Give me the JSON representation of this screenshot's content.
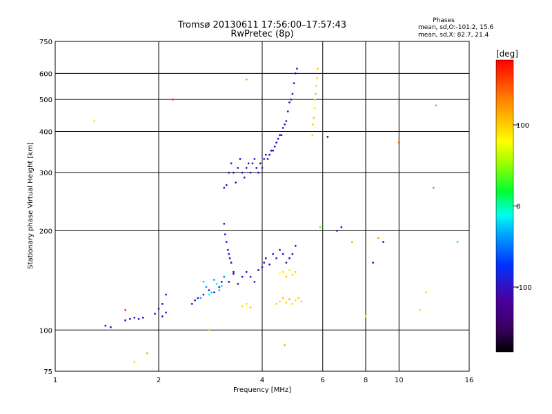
{
  "chart_data": {
    "type": "scatter",
    "title": "Tromsø 20130611 17:56:00–17:57:43",
    "subtitle": "RwPretec (8p)",
    "xlabel": "Frequency [MHz]",
    "ylabel": "Stationary phase Virtual Height [km]",
    "x_scale": "log",
    "y_scale": "log",
    "xlim": [
      1,
      16
    ],
    "ylim": [
      75,
      750
    ],
    "x_ticks": [
      1,
      2,
      4,
      6,
      8,
      10,
      16
    ],
    "x_tick_labels": [
      "1",
      "2",
      "4",
      "6",
      "8",
      "10",
      "16"
    ],
    "y_ticks": [
      75,
      100,
      200,
      300,
      400,
      500,
      600,
      750
    ],
    "y_tick_labels": [
      "75",
      "100",
      "200",
      "300",
      "400",
      "500",
      "600",
      "750"
    ],
    "grid": true,
    "info": {
      "heading": "Phases",
      "line1": "mean, sd,O:-101.2, 15.6",
      "line2": "mean, sd,X: 82.7, 21.4"
    },
    "colorbar": {
      "label": "[deg]",
      "range": [
        -180,
        180
      ],
      "ticks": [
        100,
        0,
        -100
      ],
      "tick_labels": [
        "100",
        "0",
        "-100"
      ]
    },
    "series": [
      {
        "x": [
          3.1,
          3.15,
          3.2,
          3.25,
          3.3,
          3.35,
          3.4,
          3.45,
          3.5,
          3.55,
          3.6,
          3.65,
          3.7,
          3.75,
          3.8,
          3.85,
          3.9,
          3.95,
          4.0,
          4.05,
          4.1,
          4.15,
          4.2,
          4.25,
          4.3,
          4.35,
          4.4,
          4.45,
          4.5,
          4.55,
          4.6,
          4.65,
          4.7,
          4.75,
          4.8,
          4.85,
          4.9,
          4.95,
          5.0,
          5.05
        ],
        "y": [
          270,
          275,
          300,
          320,
          300,
          280,
          310,
          330,
          300,
          290,
          310,
          320,
          300,
          320,
          330,
          310,
          300,
          320,
          310,
          330,
          340,
          330,
          340,
          350,
          350,
          360,
          370,
          380,
          390,
          390,
          410,
          420,
          430,
          460,
          490,
          500,
          520,
          560,
          600,
          620
        ],
        "phase": [
          -100,
          -110,
          -105,
          -95,
          -100,
          -110,
          -100,
          -105,
          -95,
          -100,
          -110,
          -100,
          -105,
          -100,
          -95,
          -110,
          -100,
          -105,
          -100,
          -95,
          -100,
          -110,
          -100,
          -105,
          -100,
          -95,
          -100,
          -105,
          -100,
          -110,
          -100,
          -95,
          -105,
          -100,
          -100,
          -110,
          -100,
          -95,
          -105,
          -100
        ]
      },
      {
        "x": [
          3.1,
          3.12,
          3.15,
          3.18,
          3.2,
          3.22,
          3.25,
          3.3
        ],
        "y": [
          210,
          195,
          185,
          175,
          170,
          165,
          160,
          150
        ],
        "phase": [
          -110,
          -105,
          -100,
          -110,
          -105,
          -100,
          -110,
          -105
        ]
      },
      {
        "x": [
          1.4,
          1.45,
          1.6,
          1.65,
          1.7,
          1.75,
          1.8,
          1.95,
          2.0,
          2.05,
          2.1,
          2.05,
          2.1,
          2.5,
          2.55,
          2.6,
          2.7,
          2.8,
          2.9,
          3.0,
          3.05,
          3.1,
          3.2,
          3.3,
          3.4,
          3.5,
          3.6,
          3.7,
          3.8,
          3.9,
          4.0,
          4.05,
          4.1,
          4.2,
          4.3,
          4.4,
          4.5,
          4.6,
          4.7,
          4.8,
          4.9,
          5.0
        ],
        "y": [
          103,
          102,
          107,
          108,
          109,
          108,
          109,
          112,
          116,
          120,
          128,
          110,
          113,
          120,
          123,
          125,
          128,
          132,
          130,
          135,
          140,
          145,
          140,
          148,
          138,
          145,
          150,
          145,
          140,
          152,
          155,
          160,
          165,
          158,
          170,
          165,
          175,
          170,
          160,
          165,
          170,
          180
        ],
        "phase": [
          -100,
          -105,
          -100,
          -110,
          -100,
          -105,
          -100,
          -95,
          -100,
          -105,
          -100,
          -110,
          -100,
          -95,
          -100,
          -110,
          -100,
          -105,
          -95,
          -100,
          -110,
          -100,
          -105,
          -100,
          -110,
          -100,
          -105,
          -95,
          -100,
          -110,
          -100,
          -105,
          -100,
          -95,
          -100,
          -110,
          -100,
          -105,
          -100,
          -110,
          -100,
          -105
        ]
      },
      {
        "x": [
          2.65,
          2.7,
          2.75,
          2.8,
          2.85,
          2.9,
          2.95,
          3.0,
          3.05,
          3.1
        ],
        "y": [
          125,
          140,
          135,
          128,
          130,
          142,
          138,
          132,
          136,
          145
        ],
        "phase": [
          -30,
          -20,
          -40,
          -10,
          -25,
          -35,
          -15,
          -30,
          -20,
          -40
        ]
      },
      {
        "x": [
          5.6,
          5.62,
          5.65,
          5.68,
          5.7,
          5.72,
          5.75,
          5.78,
          5.8
        ],
        "y": [
          390,
          420,
          440,
          470,
          500,
          520,
          550,
          580,
          620
        ],
        "phase": [
          95,
          100,
          105,
          90,
          100,
          110,
          95,
          100,
          105
        ]
      },
      {
        "x": [
          4.4,
          4.5,
          4.6,
          4.7,
          4.8,
          4.9,
          5.0,
          5.1,
          5.2,
          4.5,
          4.6,
          4.7,
          4.8,
          4.9,
          5.0,
          3.5,
          3.6,
          3.7
        ],
        "y": [
          120,
          122,
          125,
          121,
          124,
          120,
          123,
          125,
          122,
          148,
          150,
          145,
          152,
          147,
          150,
          118,
          120,
          117
        ],
        "phase": [
          100,
          90,
          105,
          95,
          110,
          100,
          90,
          105,
          95,
          80,
          90,
          100,
          85,
          95,
          100,
          100,
          95,
          105
        ]
      },
      {
        "x": [
          1.3,
          1.6,
          1.7,
          1.85,
          2.2,
          2.8,
          3.6,
          4.65,
          5.9,
          6.2,
          6.6,
          6.8,
          7.3,
          8.0,
          8.4,
          8.7,
          9.0,
          10.0,
          11.5,
          12.0,
          12.6,
          12.8,
          14.8
        ],
        "y": [
          430,
          115,
          80,
          85,
          500,
          100,
          575,
          90,
          205,
          385,
          200,
          205,
          185,
          110,
          160,
          190,
          185,
          370,
          115,
          130,
          270,
          480,
          185
        ],
        "phase": [
          60,
          160,
          100,
          120,
          170,
          50,
          120,
          110,
          40,
          -110,
          -105,
          -100,
          110,
          90,
          -95,
          120,
          -100,
          150,
          100,
          60,
          140,
          120,
          0
        ]
      }
    ]
  }
}
